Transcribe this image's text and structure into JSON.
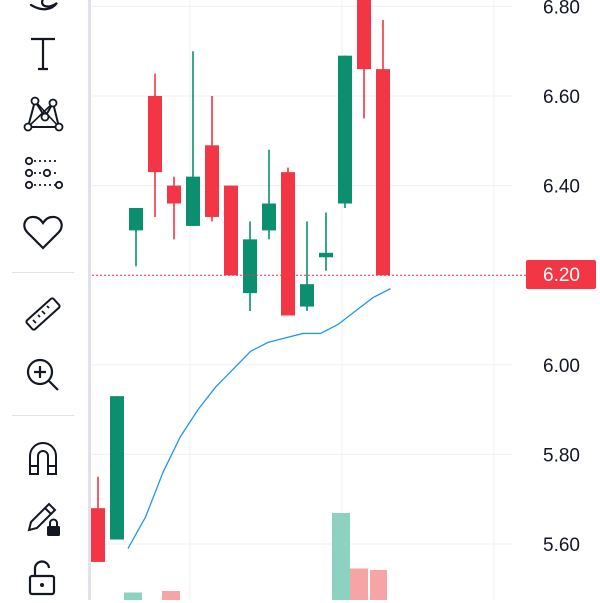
{
  "toolbar": {
    "tools": [
      {
        "name": "brush-icon",
        "interactable": true
      },
      {
        "name": "text-tool-icon",
        "interactable": true
      },
      {
        "name": "pattern-tool-icon",
        "interactable": true
      },
      {
        "name": "prediction-tool-icon",
        "interactable": true
      },
      {
        "name": "heart-icon",
        "interactable": true
      },
      {
        "name": "ruler-icon",
        "interactable": true
      },
      {
        "name": "zoom-in-icon",
        "interactable": true
      },
      {
        "name": "magnet-icon",
        "interactable": true
      },
      {
        "name": "pencil-lock-icon",
        "interactable": true
      },
      {
        "name": "unlock-icon",
        "interactable": true
      }
    ]
  },
  "colors": {
    "up": "#0b8f6f",
    "down": "#f23645",
    "ma_line": "#2196f3",
    "grid": "#eef0f4",
    "last_price_line": "#f23645",
    "volume_up": "#8dd1c1",
    "volume_down": "#f7a4a6"
  },
  "price_axis": {
    "labels": [
      "6.80",
      "6.60",
      "6.40",
      "6.00",
      "5.80",
      "5.60"
    ],
    "last_price": "6.20"
  },
  "chart_data": {
    "type": "candlestick",
    "y_axis_ticks": [
      6.8,
      6.6,
      6.4,
      6.0,
      5.8,
      5.6
    ],
    "last_price": 6.2,
    "candles": [
      {
        "open": 5.68,
        "high": 5.75,
        "low": 5.56,
        "close": 5.56
      },
      {
        "open": 5.61,
        "high": 5.93,
        "low": 5.61,
        "close": 5.93
      },
      {
        "open": 6.3,
        "high": 6.35,
        "low": 6.22,
        "close": 6.35
      },
      {
        "open": 6.6,
        "high": 6.65,
        "low": 6.33,
        "close": 6.43
      },
      {
        "open": 6.4,
        "high": 6.42,
        "low": 6.28,
        "close": 6.36
      },
      {
        "open": 6.31,
        "high": 6.7,
        "low": 6.31,
        "close": 6.42
      },
      {
        "open": 6.49,
        "high": 6.6,
        "low": 6.32,
        "close": 6.33
      },
      {
        "open": 6.4,
        "high": 6.4,
        "low": 6.2,
        "close": 6.2
      },
      {
        "open": 6.16,
        "high": 6.32,
        "low": 6.12,
        "close": 6.28
      },
      {
        "open": 6.3,
        "high": 6.48,
        "low": 6.28,
        "close": 6.36
      },
      {
        "open": 6.43,
        "high": 6.44,
        "low": 6.11,
        "close": 6.11
      },
      {
        "open": 6.13,
        "high": 6.32,
        "low": 6.12,
        "close": 6.18
      },
      {
        "open": 6.24,
        "high": 6.34,
        "low": 6.21,
        "close": 6.25
      },
      {
        "open": 6.36,
        "high": 6.69,
        "low": 6.35,
        "close": 6.69
      },
      {
        "open": 6.86,
        "high": 6.86,
        "low": 6.55,
        "close": 6.66
      },
      {
        "open": 6.66,
        "high": 6.77,
        "low": 6.2,
        "close": 6.2
      }
    ],
    "ma_line": [
      5.59,
      5.66,
      5.76,
      5.84,
      5.9,
      5.95,
      5.99,
      6.03,
      6.05,
      6.06,
      6.07,
      6.07,
      6.09,
      6.12,
      6.15,
      6.17
    ],
    "volume": [
      {
        "dir": "up",
        "level": 0.05
      },
      {
        "dir": "down",
        "level": 0.06
      },
      {
        "dir": "up",
        "level": 0.58
      },
      {
        "dir": "down",
        "level": 0.21
      },
      {
        "dir": "down",
        "level": 0.2
      }
    ]
  }
}
